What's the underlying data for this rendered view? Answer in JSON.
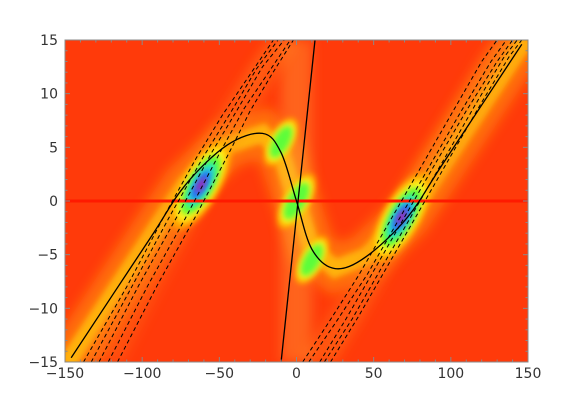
{
  "chart_data": {
    "type": "heatmap",
    "title": "",
    "xlabel": "",
    "ylabel": "",
    "xlim": [
      -150,
      150
    ],
    "ylim": [
      -15,
      15
    ],
    "x_ticks": [
      -150,
      -100,
      -50,
      0,
      50,
      100,
      150
    ],
    "y_ticks": [
      -15,
      -10,
      -5,
      0,
      5,
      10,
      15
    ],
    "x_tick_labels": [
      "−150",
      "−100",
      "−50",
      "0",
      "50",
      "100",
      "150"
    ],
    "y_tick_labels": [
      "−15",
      "−10",
      "−5",
      "0",
      "5",
      "10",
      "15"
    ],
    "grid": false,
    "colors": {
      "background": "#ff3a0a",
      "hot_spot": "#c8129e",
      "horizontal_line": "#ff1a00",
      "curves": "#000000"
    },
    "hotspots": [
      {
        "x": -62,
        "y": 1.5,
        "intensity": 1.0
      },
      {
        "x": 68,
        "y": -1.5,
        "intensity": 1.0
      },
      {
        "x": -10,
        "y": 5.5,
        "intensity": 0.45
      },
      {
        "x": 10,
        "y": -5.5,
        "intensity": 0.45
      },
      {
        "x": 0,
        "y": 0,
        "intensity": 0.55
      }
    ],
    "horizontal_line": {
      "y": 0
    },
    "solid_curves": [
      {
        "name": "",
        "type": "cubic",
        "points": [
          [
            -146,
            -14.6
          ],
          [
            -95,
            -3.5
          ],
          [
            -72,
            1.5
          ],
          [
            -45,
            5.2
          ],
          [
            -22,
            6.3
          ],
          [
            -10,
            4.5
          ],
          [
            0,
            0
          ],
          [
            10,
            -4.5
          ],
          [
            25,
            -6.3
          ],
          [
            45,
            -5.2
          ],
          [
            72,
            -1.5
          ],
          [
            95,
            3.5
          ],
          [
            146,
            14.6
          ]
        ]
      },
      {
        "name": "",
        "type": "line",
        "points": [
          [
            -10,
            -15
          ],
          [
            12,
            15
          ]
        ]
      }
    ],
    "dashed_curves": [
      {
        "points": [
          [
            -138,
            -15
          ],
          [
            -110,
            -8.0
          ],
          [
            -85,
            -1.2
          ],
          [
            -65,
            4.0
          ],
          [
            -48,
            8.0
          ],
          [
            -30,
            11.8
          ],
          [
            -15,
            15
          ]
        ]
      },
      {
        "points": [
          [
            -133,
            -15
          ],
          [
            -106,
            -7.8
          ],
          [
            -82,
            -1.4
          ],
          [
            -60,
            4.2
          ],
          [
            -42,
            8.4
          ],
          [
            -26,
            12.3
          ],
          [
            -12,
            15
          ]
        ]
      },
      {
        "points": [
          [
            -128,
            -15
          ],
          [
            -102,
            -7.8
          ],
          [
            -78,
            -1.6
          ],
          [
            -55,
            4.5
          ],
          [
            -38,
            8.6
          ],
          [
            -22,
            12.5
          ],
          [
            -8,
            15
          ]
        ]
      },
      {
        "points": [
          [
            -122,
            -15
          ],
          [
            -96,
            -7.8
          ],
          [
            -72,
            -1.6
          ],
          [
            -50,
            4.4
          ],
          [
            -34,
            8.6
          ],
          [
            -18,
            12.0
          ],
          [
            -4,
            15
          ]
        ]
      },
      {
        "points": [
          [
            -116,
            -15
          ],
          [
            -90,
            -7.8
          ],
          [
            -66,
            -1.6
          ],
          [
            -44,
            4.4
          ],
          [
            -30,
            8.4
          ],
          [
            -16,
            11.8
          ],
          [
            -2,
            15
          ]
        ]
      },
      {
        "points": [
          [
            15,
            -15
          ],
          [
            32,
            -11.0
          ],
          [
            50,
            -6.5
          ],
          [
            70,
            -1.5
          ],
          [
            90,
            3.5
          ],
          [
            110,
            8.4
          ],
          [
            130,
            13.0
          ],
          [
            140,
            15
          ]
        ]
      },
      {
        "points": [
          [
            18,
            -15
          ],
          [
            36,
            -11.0
          ],
          [
            56,
            -6.0
          ],
          [
            76,
            -1.0
          ],
          [
            96,
            4.0
          ],
          [
            116,
            9.0
          ],
          [
            134,
            13.3
          ],
          [
            143,
            15
          ]
        ]
      },
      {
        "points": [
          [
            22,
            -15
          ],
          [
            40,
            -10.8
          ],
          [
            60,
            -5.8
          ],
          [
            80,
            -0.8
          ],
          [
            100,
            4.2
          ],
          [
            120,
            9.2
          ],
          [
            138,
            13.5
          ],
          [
            146,
            15
          ]
        ]
      },
      {
        "points": [
          [
            8,
            -15
          ],
          [
            26,
            -11.2
          ],
          [
            46,
            -6.8
          ],
          [
            66,
            -1.8
          ],
          [
            86,
            3.2
          ],
          [
            106,
            8.2
          ],
          [
            126,
            13.0
          ],
          [
            136,
            15
          ]
        ]
      },
      {
        "points": [
          [
            4,
            -15
          ],
          [
            20,
            -11.5
          ],
          [
            40,
            -7.0
          ],
          [
            60,
            -2.0
          ],
          [
            80,
            3.0
          ],
          [
            100,
            8.0
          ],
          [
            120,
            13.0
          ],
          [
            130,
            15
          ]
        ]
      }
    ]
  }
}
